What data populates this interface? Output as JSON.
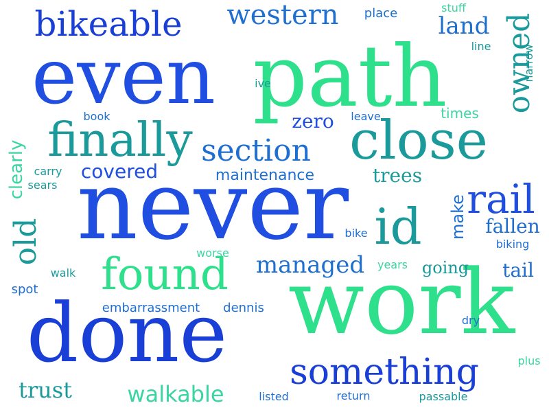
{
  "colors": {
    "blue": "#1a3fd6",
    "royal": "#1f4ee0",
    "azure": "#1f6fd0",
    "teal": "#1a9a9a",
    "green": "#2ee08c",
    "mint": "#3ad5a0"
  },
  "words": {
    "even": "even",
    "path": "path",
    "never": "never",
    "work": "work",
    "done": "done",
    "close": "close",
    "finally": "finally",
    "found": "found",
    "id": "id",
    "bikeable": "bikeable",
    "western": "western",
    "section": "section",
    "rail": "rail",
    "something": "something",
    "owned": "owned",
    "old": "old",
    "land": "land",
    "managed": "managed",
    "covered": "covered",
    "trees": "trees",
    "fallen": "fallen",
    "clearly": "clearly",
    "make": "make",
    "zero": "zero",
    "trust": "trust",
    "walkable": "walkable",
    "maintenance": "maintenance",
    "going": "going",
    "tail": "tail",
    "times": "times",
    "place": "place",
    "stuff": "stuff",
    "line": "line",
    "narrow": "narrow",
    "ive": "ive",
    "book": "book",
    "leave": "leave",
    "carry": "carry",
    "sears": "sears",
    "bike": "bike",
    "biking": "biking",
    "worse": "worse",
    "walk": "walk",
    "years": "years",
    "spot": "spot",
    "embarrassment": "embarrassment",
    "dennis": "dennis",
    "dry": "dry",
    "plus": "plus",
    "listed": "listed",
    "return": "return",
    "passable": "passable"
  }
}
